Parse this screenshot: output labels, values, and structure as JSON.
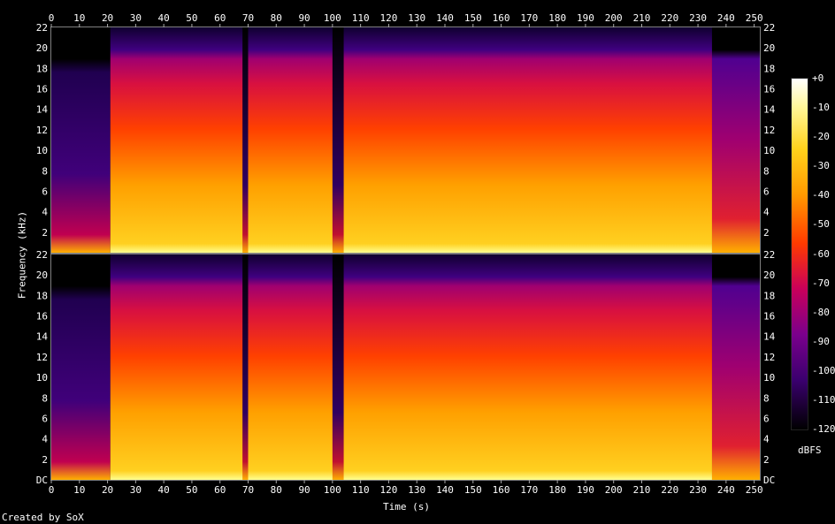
{
  "chart_data": {
    "type": "heatmap",
    "xlabel": "Time (s)",
    "ylabel": "Frequency (kHz)",
    "xlim": [
      0,
      252
    ],
    "ylim": [
      0,
      22
    ],
    "x_ticks": [
      "0",
      "10",
      "20",
      "30",
      "40",
      "50",
      "60",
      "70",
      "80",
      "90",
      "100",
      "110",
      "120",
      "130",
      "140",
      "150",
      "160",
      "170",
      "180",
      "190",
      "200",
      "210",
      "220",
      "230",
      "240",
      "250"
    ],
    "y_ticks_bottom": [
      "DC",
      "2",
      "4",
      "6",
      "8",
      "10",
      "12",
      "14",
      "16",
      "18",
      "20",
      "22"
    ],
    "y_ticks_top": [
      "2",
      "4",
      "6",
      "8",
      "10",
      "12",
      "14",
      "16",
      "18",
      "20",
      "22"
    ],
    "channels": 2,
    "colorbar": {
      "unit": "dBFS",
      "ticks": [
        "+0",
        "-10",
        "-20",
        "-30",
        "-40",
        "-50",
        "-60",
        "-70",
        "-80",
        "-90",
        "-100",
        "-110",
        "-120"
      ]
    },
    "segments": [
      {
        "t0": 0,
        "t1": 21,
        "kind": "quiet-intro"
      },
      {
        "t0": 21,
        "t1": 235,
        "kind": "loud-body"
      },
      {
        "t0": 235,
        "t1": 252,
        "kind": "fade-out"
      }
    ],
    "gaps": [
      {
        "t0": 68,
        "t1": 70
      },
      {
        "t0": 100,
        "t1": 104
      }
    ]
  },
  "footer": {
    "credit": "Created by SoX"
  }
}
